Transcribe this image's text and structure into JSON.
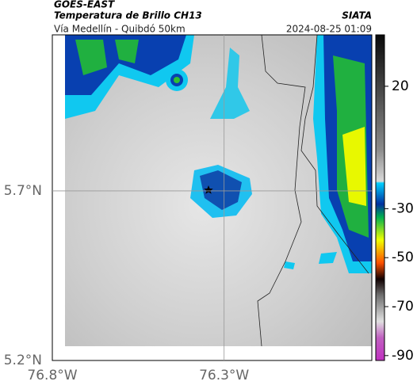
{
  "header": {
    "source": "GOES-EAST",
    "product": "Temperatura de Brillo CH13",
    "agency": "SIATA",
    "route": "Vía Medellín - Quibdó 50km",
    "datetime": "2024-08-25 01:09"
  },
  "map": {
    "xlim": [
      -76.8,
      -75.87
    ],
    "ylim": [
      5.2,
      6.16
    ],
    "xticks": [
      {
        "value": -76.8,
        "label": "76.8°W"
      },
      {
        "value": -76.3,
        "label": "76.3°W"
      }
    ],
    "yticks": [
      {
        "value": 5.7,
        "label": "5.7°N"
      },
      {
        "value": 5.2,
        "label": "5.2°N"
      }
    ],
    "grid": [
      {
        "axis": "x",
        "value": -76.3
      },
      {
        "axis": "y",
        "value": 5.7
      }
    ]
  },
  "colorbar": {
    "clim": [
      -92,
      41
    ],
    "ticks": [
      20,
      -30,
      -50,
      -70,
      -90
    ]
  }
}
